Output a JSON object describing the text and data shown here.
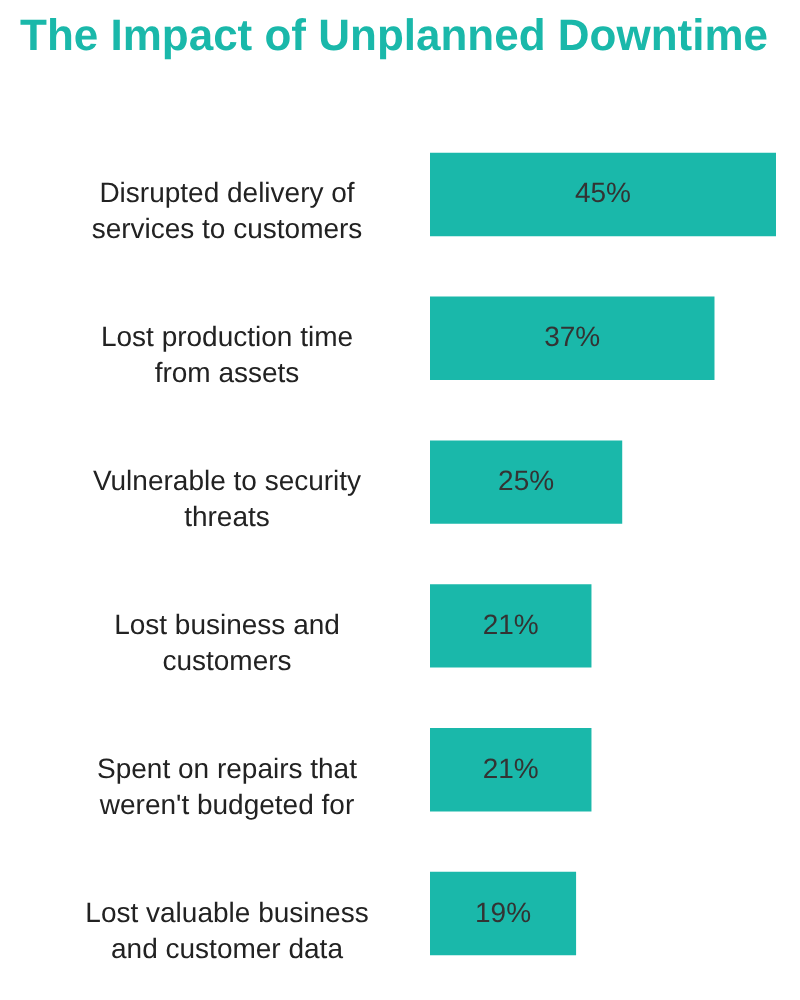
{
  "chart_data": {
    "type": "bar",
    "orientation": "horizontal",
    "title": "The Impact of Unplanned Downtime",
    "categories": [
      "Disrupted delivery of services to customers",
      "Lost production time from assets",
      "Vulnerable to security threats",
      "Lost business and customers",
      "Spent on repairs that weren't budgeted for",
      "Lost valuable business and customer data"
    ],
    "values": [
      45,
      37,
      25,
      21,
      21,
      19
    ],
    "value_labels": [
      "45%",
      "37%",
      "25%",
      "21%",
      "21%",
      "19%"
    ],
    "color": "#1ab8aa"
  }
}
